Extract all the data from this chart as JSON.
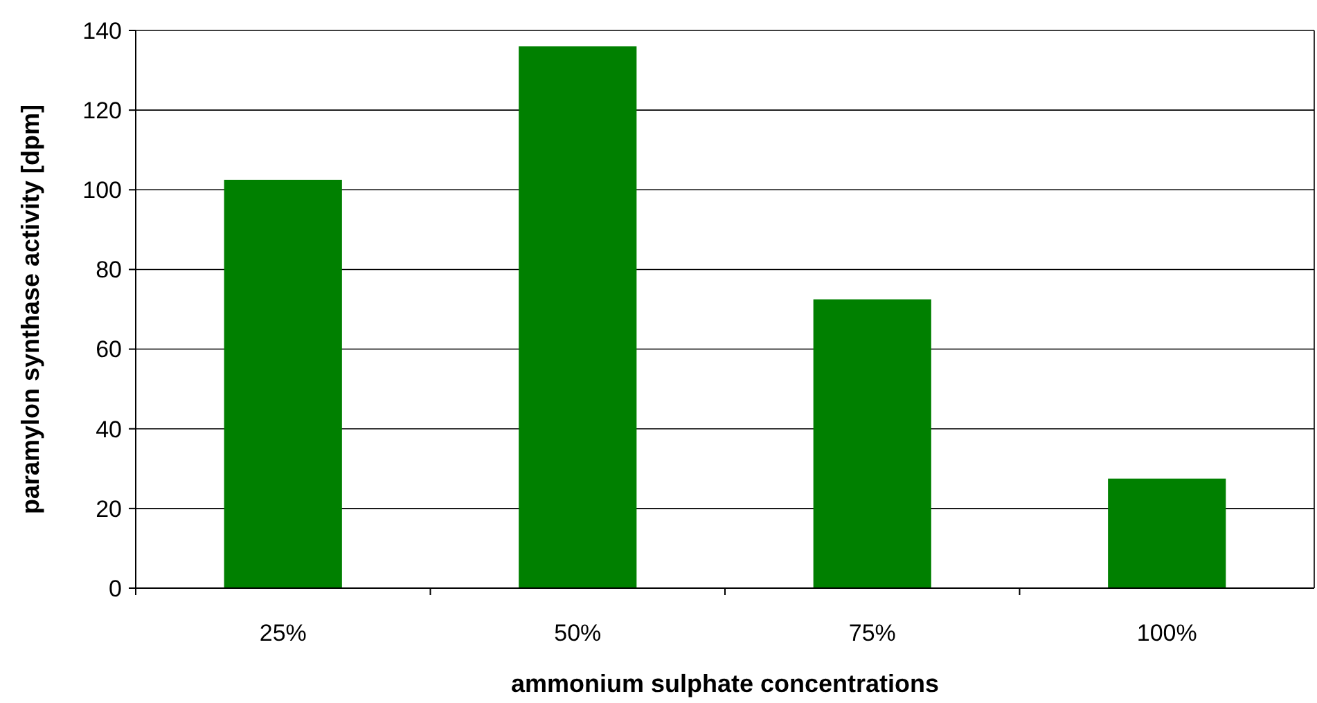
{
  "chart_data": {
    "type": "bar",
    "xlabel": "ammonium sulphate concentrations",
    "ylabel": "paramylon synthase activity [dpm]",
    "categories": [
      "25%",
      "50%",
      "75%",
      "100%"
    ],
    "values": [
      102.5,
      136,
      72.5,
      27.5
    ],
    "color": "#008000",
    "ylim": [
      0,
      140
    ],
    "yticks": [
      0,
      20,
      40,
      60,
      80,
      100,
      120,
      140
    ],
    "grid": "y"
  }
}
